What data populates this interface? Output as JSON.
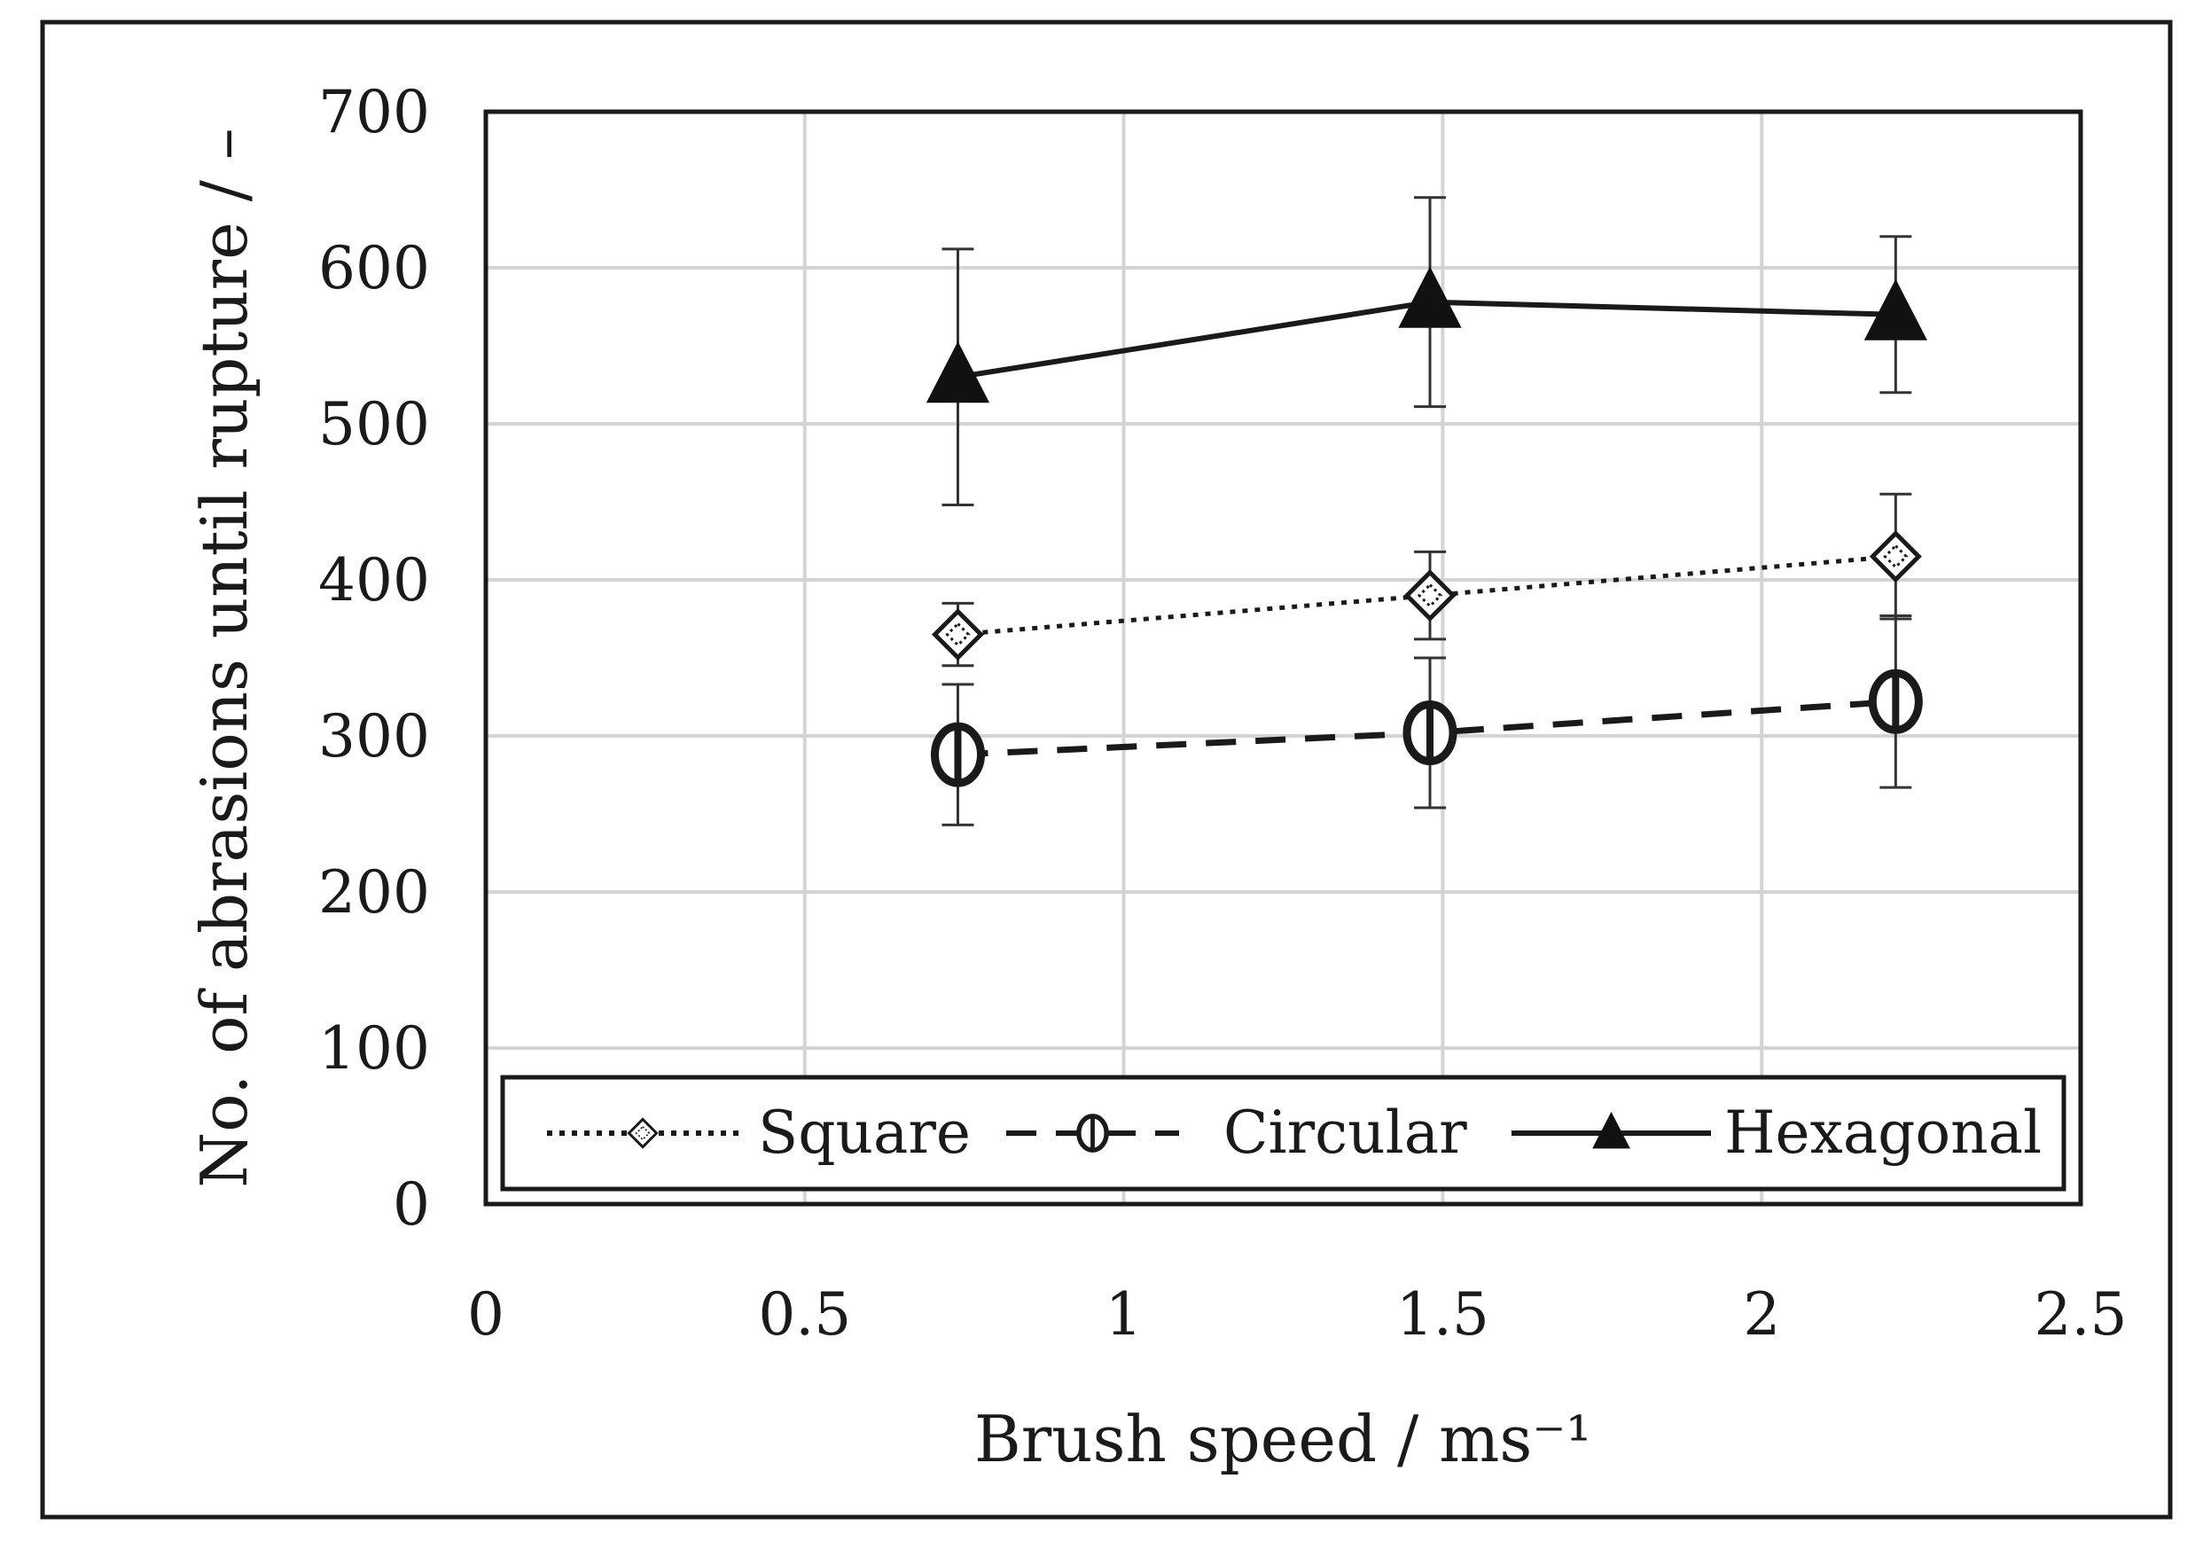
{
  "chart_data": {
    "type": "scatter",
    "title": "",
    "xlabel": "Brush speed / ms⁻¹",
    "ylabel": "No. of abrasions until rupture / –",
    "xlim": [
      0,
      2.5
    ],
    "ylim": [
      0,
      700
    ],
    "x_ticks": [
      "0",
      "0.5",
      "1",
      "1.5",
      "2",
      "2.5"
    ],
    "y_ticks": [
      "0",
      "100",
      "200",
      "300",
      "400",
      "500",
      "600",
      "700"
    ],
    "grid": true,
    "legend_position": "bottom",
    "series": [
      {
        "name": "Square",
        "line": "dotted",
        "marker": "diamond-open",
        "color": "#1a1a1a",
        "x": [
          0.74,
          1.48,
          2.21
        ],
        "y": [
          365,
          390,
          415
        ],
        "error": [
          20,
          28,
          40
        ]
      },
      {
        "name": "Circular",
        "line": "dashed",
        "marker": "circle-bar",
        "color": "#1a1a1a",
        "x": [
          0.74,
          1.48,
          2.21
        ],
        "y": [
          288,
          302,
          322
        ],
        "error": [
          45,
          48,
          55
        ]
      },
      {
        "name": "Hexagonal",
        "line": "solid",
        "marker": "triangle-filled",
        "color": "#1a1a1a",
        "x": [
          0.74,
          1.48,
          2.21
        ],
        "y": [
          530,
          578,
          570
        ],
        "error": [
          82,
          67,
          50
        ]
      }
    ]
  }
}
